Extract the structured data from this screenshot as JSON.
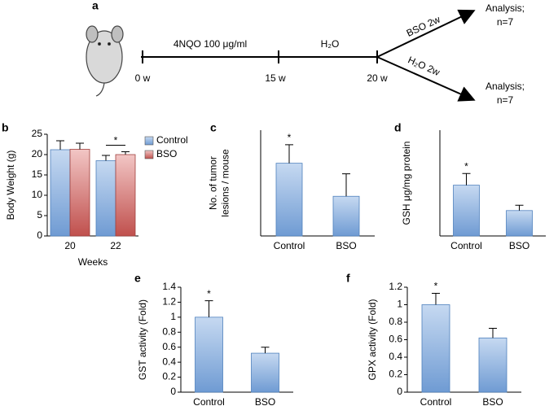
{
  "timeline": {
    "label": "a",
    "treatment": "4NQO 100 μg/ml",
    "water": "H₂O",
    "times": [
      "0 w",
      "15 w",
      "20 w"
    ],
    "branches": [
      {
        "label": "BSO 2w",
        "result": "Analysis;",
        "n": "n=7"
      },
      {
        "label": "H₂O 2w",
        "result": "Analysis;",
        "n": "n=7"
      }
    ]
  },
  "chart_data": [
    {
      "type": "bar",
      "label": "b",
      "ylabel": [
        "Body Weight (g)"
      ],
      "xlabel": "Weeks",
      "categories": [
        "20",
        "22"
      ],
      "series": [
        {
          "name": "Control",
          "color": "#8db3e2",
          "values": [
            21.2,
            18.5
          ],
          "errors": [
            2.2,
            1.3
          ]
        },
        {
          "name": "BSO",
          "color": "#e6a09e",
          "values": [
            21.3,
            20.0
          ],
          "errors": [
            1.5,
            0.7
          ]
        }
      ],
      "ylim": [
        0,
        25
      ],
      "yticks": [
        0,
        5,
        10,
        15,
        20,
        25
      ],
      "annotation": "*",
      "legend": "right"
    },
    {
      "type": "bar",
      "label": "c",
      "ylabel": [
        "No. of tumor",
        "lesions / mouse"
      ],
      "categories": [
        "Control",
        "BSO"
      ],
      "values": [
        5.5,
        3.0
      ],
      "errors": [
        1.4,
        1.7
      ],
      "color": "#8db3e2",
      "ylim": [
        0,
        8
      ],
      "annotation": "*"
    },
    {
      "type": "bar",
      "label": "d",
      "ylabel": [
        "GSH μg/mg protein"
      ],
      "categories": [
        "Control",
        "BSO"
      ],
      "values": [
        4.8,
        2.4
      ],
      "errors": [
        1.1,
        0.5
      ],
      "color": "#8db3e2",
      "ylim": [
        0,
        10
      ],
      "annotation": "*"
    },
    {
      "type": "bar",
      "label": "e",
      "ylabel": [
        "GST activity (Fold)"
      ],
      "categories": [
        "Control",
        "BSO"
      ],
      "values": [
        1.0,
        0.52
      ],
      "errors": [
        0.22,
        0.08
      ],
      "color": "#8db3e2",
      "ylim": [
        0,
        1.4
      ],
      "yticks": [
        0,
        0.2,
        0.4,
        0.6,
        0.8,
        1,
        1.2,
        1.4
      ],
      "annotation": "*"
    },
    {
      "type": "bar",
      "label": "f",
      "ylabel": [
        "GPX activity (Fold)"
      ],
      "categories": [
        "Control",
        "BSO"
      ],
      "values": [
        1.0,
        0.62
      ],
      "errors": [
        0.13,
        0.11
      ],
      "color": "#8db3e2",
      "ylim": [
        0,
        1.2
      ],
      "yticks": [
        0,
        0.2,
        0.4,
        0.6,
        0.8,
        1,
        1.2
      ],
      "annotation": "*"
    }
  ]
}
